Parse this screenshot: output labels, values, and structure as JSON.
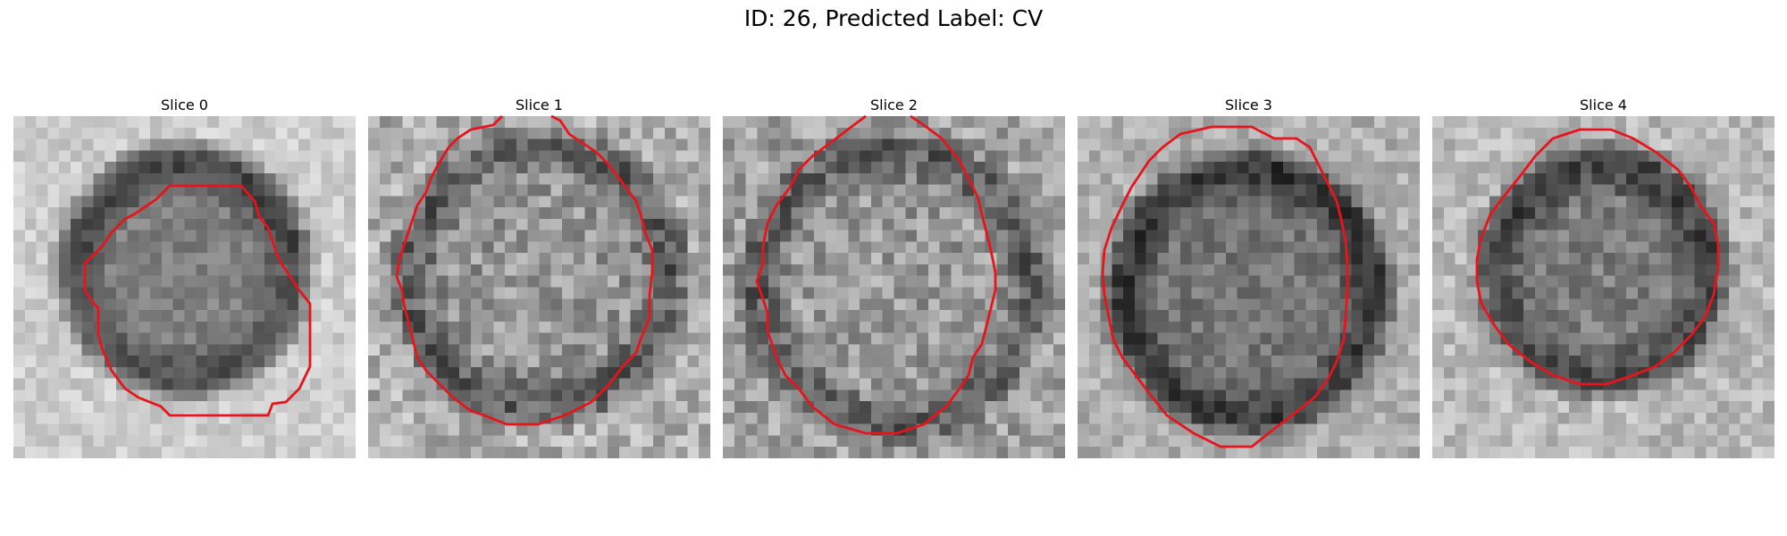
{
  "figure": {
    "suptitle": "ID: 26, Predicted Label: CV"
  },
  "panels": [
    {
      "title": "Slice 0"
    },
    {
      "title": "Slice 1"
    },
    {
      "title": "Slice 2"
    },
    {
      "title": "Slice 3"
    },
    {
      "title": "Slice 4"
    }
  ],
  "colors": {
    "contour": "#e8141c",
    "background": "#ffffff",
    "colormap": "grayscale"
  }
}
